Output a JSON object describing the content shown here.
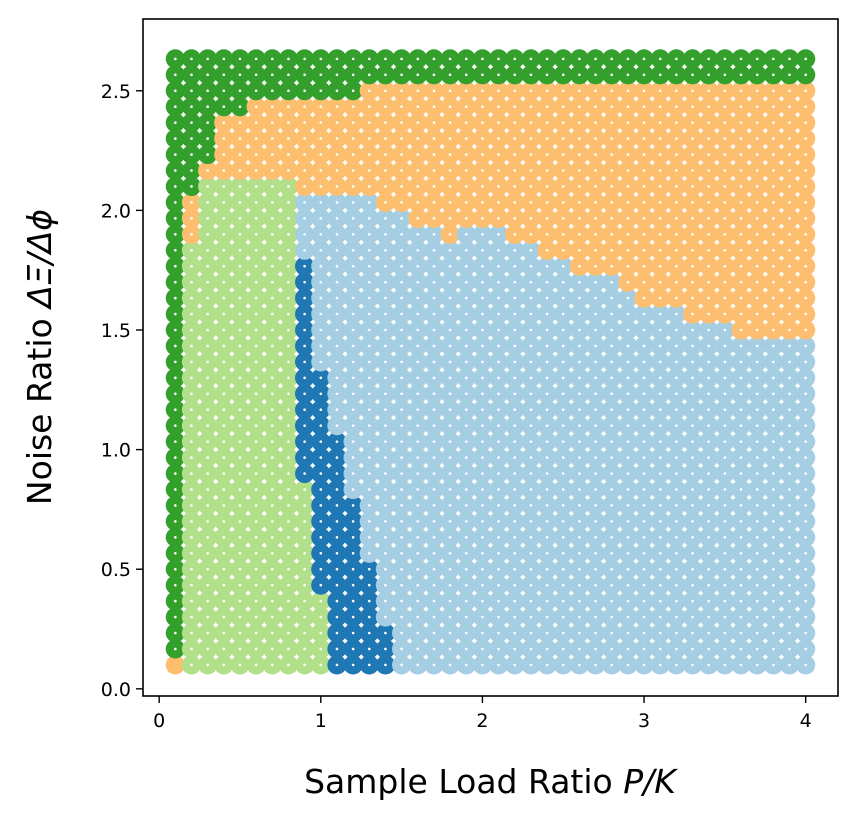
{
  "chart_data": {
    "type": "scatter",
    "title": "",
    "xlabel": "Sample Load Ratio P/K",
    "xlabel_parts": {
      "text": "Sample Load Ratio ",
      "math": "P/K"
    },
    "ylabel": "Noise Ratio ΔΞ/Δϕ",
    "ylabel_parts": {
      "text": "Noise Ratio ",
      "math": "ΔΞ/Δϕ"
    },
    "xlim": [
      -0.1,
      4.2
    ],
    "ylim": [
      -0.03,
      2.8
    ],
    "x_ticks": [
      0,
      1,
      2,
      3,
      4
    ],
    "x_tick_labels": [
      "0",
      "1",
      "2",
      "3",
      "4"
    ],
    "y_ticks": [
      0.0,
      0.5,
      1.0,
      1.5,
      2.0,
      2.5
    ],
    "y_tick_labels": [
      "0.0",
      "0.5",
      "1.0",
      "1.5",
      "2.0",
      "2.5"
    ],
    "grid": false,
    "legend": "none",
    "marker_inner": "small white dot in each marker",
    "grid_points": {
      "x_start": 0.1,
      "x_step": 0.1,
      "x_count": 40,
      "y_start": 0.1,
      "y_step": 0.0666667,
      "y_count": 39
    },
    "colors": {
      "dark_green": "#33a02c",
      "light_green": "#b2df8a",
      "dark_blue": "#1f78b4",
      "light_blue": "#a6cee3",
      "orange": "#fdbf6f"
    },
    "regions": [
      {
        "name": "dark_green",
        "description": "column x=0.1 for y≥0.17 and top band y≈2.6–2.67 across all x; upper-left corner wedge"
      },
      {
        "name": "light_green",
        "description": "x≈0.2–0.85 for y≤2.1, extending to x≈1.05 near bottom"
      },
      {
        "name": "dark_blue",
        "description": "narrow staircase band from (0.85–0.95, 1.75) down to (1.05–1.45, 0.1)"
      },
      {
        "name": "light_blue",
        "description": "lower-right region, x≥0.9, below the orange staircase"
      },
      {
        "name": "orange",
        "description": "upper-right region; boundary from y≈2.05 at x≈1.1 down to y≈1.45 at x=4.0; also (0.1,0.1) and (0.2,1.9–2.03)"
      }
    ]
  }
}
